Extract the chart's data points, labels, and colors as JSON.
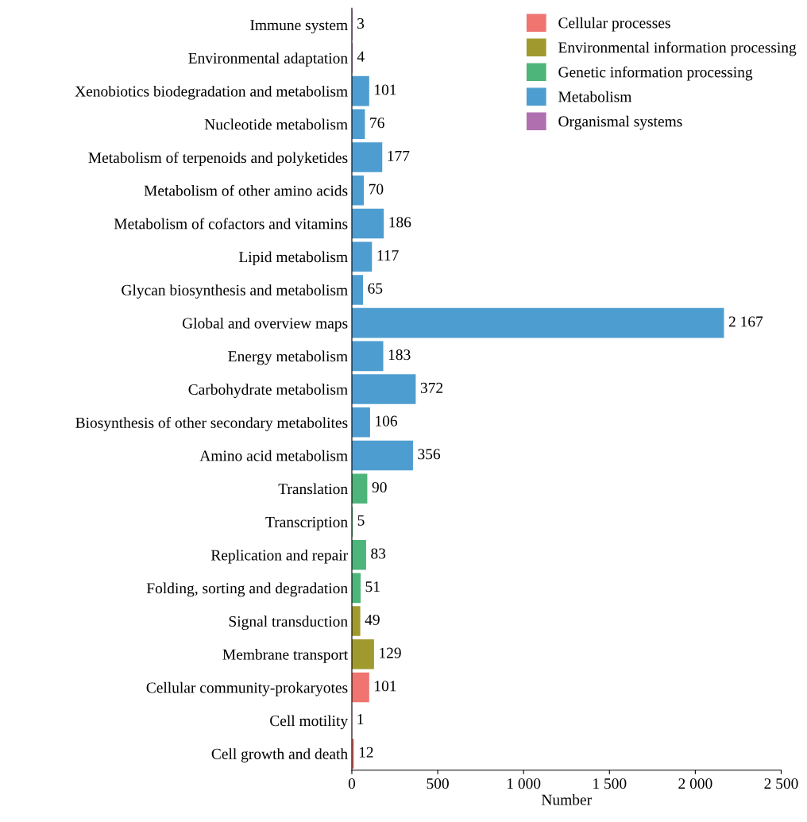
{
  "chart_data": {
    "type": "bar",
    "orientation": "horizontal",
    "xlabel": "Number",
    "categories": [
      "Immune system",
      "Environmental adaptation",
      "Xenobiotics biodegradation and metabolism",
      "Nucleotide metabolism",
      "Metabolism of terpenoids and polyketides",
      "Metabolism of other amino acids",
      "Metabolism of cofactors and vitamins",
      "Lipid metabolism",
      "Glycan biosynthesis and metabolism",
      "Global and overview maps",
      "Energy metabolism",
      "Carbohydrate metabolism",
      "Biosynthesis of other secondary metabolites",
      "Amino acid metabolism",
      "Translation",
      "Transcription",
      "Replication and repair",
      "Folding, sorting and degradation",
      "Signal transduction",
      "Membrane transport",
      "Cellular community-prokaryotes",
      "Cell motility",
      "Cell growth and death"
    ],
    "series": [
      {
        "name": "Cellular processes",
        "color": "#f07470",
        "values": [
          null,
          null,
          null,
          null,
          null,
          null,
          null,
          null,
          null,
          null,
          null,
          null,
          null,
          null,
          null,
          null,
          null,
          null,
          null,
          null,
          101,
          1,
          12
        ],
        "value_labels": [
          null,
          null,
          null,
          null,
          null,
          null,
          null,
          null,
          null,
          null,
          null,
          null,
          null,
          null,
          null,
          null,
          null,
          null,
          null,
          null,
          "101",
          "1",
          "12"
        ]
      },
      {
        "name": "Environmental information processing",
        "color": "#a09a2e",
        "values": [
          null,
          null,
          null,
          null,
          null,
          null,
          null,
          null,
          null,
          null,
          null,
          null,
          null,
          null,
          null,
          null,
          null,
          null,
          49,
          129,
          null,
          null,
          null
        ],
        "value_labels": [
          null,
          null,
          null,
          null,
          null,
          null,
          null,
          null,
          null,
          null,
          null,
          null,
          null,
          null,
          null,
          null,
          null,
          null,
          "49",
          "129",
          null,
          null,
          null
        ]
      },
      {
        "name": "Genetic information processing",
        "color": "#4db57a",
        "values": [
          null,
          null,
          null,
          null,
          null,
          null,
          null,
          null,
          null,
          null,
          null,
          null,
          null,
          null,
          90,
          5,
          83,
          51,
          null,
          null,
          null,
          null,
          null
        ],
        "value_labels": [
          null,
          null,
          null,
          null,
          null,
          null,
          null,
          null,
          null,
          null,
          null,
          null,
          null,
          null,
          "90",
          "5",
          "83",
          "51",
          null,
          null,
          null,
          null,
          null
        ]
      },
      {
        "name": "Metabolism",
        "color": "#4e9dd0",
        "values": [
          null,
          null,
          101,
          76,
          177,
          70,
          186,
          117,
          65,
          2167,
          183,
          372,
          106,
          356,
          null,
          null,
          null,
          null,
          null,
          null,
          null,
          null,
          null
        ],
        "value_labels": [
          null,
          null,
          "101",
          "76",
          "177",
          "70",
          "186",
          "117",
          "65",
          "2 167",
          "183",
          "372",
          "106",
          "356",
          null,
          null,
          null,
          null,
          null,
          null,
          null,
          null,
          null
        ]
      },
      {
        "name": "Organismal systems",
        "color": "#b070b0",
        "values": [
          3,
          4,
          null,
          null,
          null,
          null,
          null,
          null,
          null,
          null,
          null,
          null,
          null,
          null,
          null,
          null,
          null,
          null,
          null,
          null,
          null,
          null,
          null
        ],
        "value_labels": [
          "3",
          "4",
          null,
          null,
          null,
          null,
          null,
          null,
          null,
          null,
          null,
          null,
          null,
          null,
          null,
          null,
          null,
          null,
          null,
          null,
          null,
          null,
          null
        ]
      }
    ],
    "xlim": [
      0,
      2500
    ],
    "xticks": [
      0,
      500,
      {
        "value": 1000,
        "label": "1 000"
      },
      {
        "value": 1500,
        "label": "1 500"
      },
      {
        "value": 2000,
        "label": "2 000"
      },
      {
        "value": 2500,
        "label": "2 500"
      }
    ],
    "legend": "top right",
    "grid": false
  }
}
